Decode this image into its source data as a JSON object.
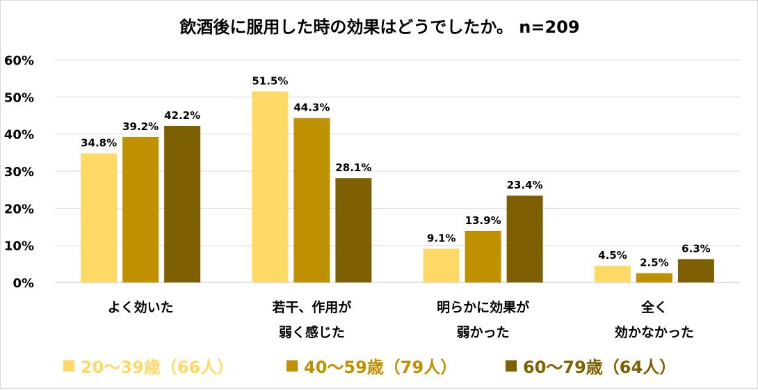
{
  "chart_data": {
    "type": "bar",
    "title": "飲酒後に服用した時の効果はどうでしたか。 n=209",
    "categories": [
      [
        "よく効いた"
      ],
      [
        "若干、作用が",
        "弱く感じた"
      ],
      [
        "明らかに効果が",
        "弱かった"
      ],
      [
        "全く",
        "効かなかった"
      ]
    ],
    "series": [
      {
        "name": "20～39歳（66人）",
        "color": "#FFD966",
        "values": [
          34.8,
          51.5,
          9.1,
          4.5
        ]
      },
      {
        "name": "40～59歳（79人）",
        "color": "#BF9000",
        "values": [
          39.2,
          44.3,
          13.9,
          2.5
        ]
      },
      {
        "name": "60～79歳（64人）",
        "color": "#7F6000",
        "values": [
          42.2,
          28.1,
          23.4,
          6.3
        ]
      }
    ],
    "data_labels": [
      [
        "34.8%",
        "51.5%",
        "9.1%",
        "4.5%"
      ],
      [
        "39.2%",
        "44.3%",
        "13.9%",
        "2.5%"
      ],
      [
        "42.2%",
        "28.1%",
        "23.4%",
        "6.3%"
      ]
    ],
    "yticks": [
      0,
      10,
      20,
      30,
      40,
      50,
      60
    ],
    "ytick_labels": [
      "0%",
      "10%",
      "20%",
      "30%",
      "40%",
      "50%",
      "60%"
    ],
    "ylim": [
      0,
      60
    ],
    "grid": true,
    "legend": "bottom",
    "xlabel": "",
    "ylabel": ""
  }
}
